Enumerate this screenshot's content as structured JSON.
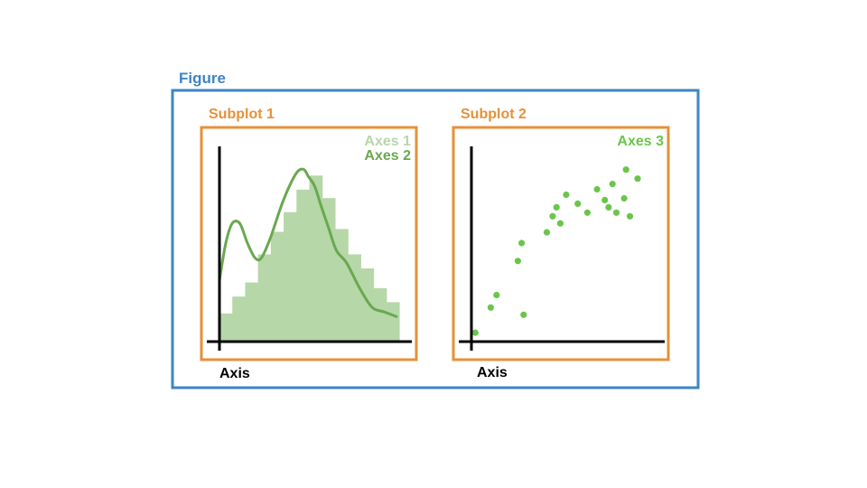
{
  "figure": {
    "label": "Figure",
    "color": "#3d85c6"
  },
  "subplots": [
    {
      "label": "Subplot 1",
      "color": "#e69138",
      "axis_label": "Axis",
      "legend": [
        {
          "text": "Axes 1",
          "color": "#b6d7a8"
        },
        {
          "text": "Axes 2",
          "color": "#6aa84f"
        }
      ]
    },
    {
      "label": "Subplot 2",
      "color": "#e69138",
      "axis_label": "Axis",
      "legend": [
        {
          "text": "Axes 3",
          "color": "#6ac64a"
        }
      ]
    }
  ],
  "chart_data": [
    {
      "type": "bar",
      "series_label": "Axes 1",
      "color": "#b6d7a8",
      "values": [
        1.0,
        1.6,
        2.1,
        3.1,
        3.9,
        4.6,
        5.4,
        5.9,
        5.1,
        4.0,
        3.1,
        2.6,
        1.9,
        1.4
      ],
      "ylim": [
        0,
        7
      ]
    },
    {
      "type": "line",
      "series_label": "Axes 2",
      "color": "#6aa84f",
      "x": [
        0,
        0.5,
        1,
        1.6,
        2.2,
        2.8,
        3.3,
        4,
        5,
        6,
        6.6,
        7,
        7.5,
        8,
        8.6,
        9.2,
        10,
        11,
        12,
        13,
        14
      ],
      "y": [
        1.5,
        3.0,
        3.8,
        3.8,
        3.0,
        2.4,
        2.4,
        3.2,
        4.7,
        5.8,
        6.0,
        5.7,
        5.3,
        4.5,
        3.6,
        2.7,
        2.2,
        1.2,
        0.4,
        0.2,
        0.0
      ],
      "xlim": [
        0,
        14
      ],
      "ylim": [
        -1,
        7
      ]
    },
    {
      "type": "scatter",
      "series_label": "Axes 3",
      "color": "#6ac64a",
      "x": [
        0.2,
        1.0,
        1.3,
        2.4,
        2.6,
        2.7,
        3.9,
        4.2,
        4.4,
        4.6,
        4.9,
        5.5,
        6.0,
        6.5,
        6.9,
        7.1,
        7.3,
        7.5,
        7.9,
        8.0,
        8.2,
        8.6
      ],
      "y": [
        0.5,
        1.9,
        2.6,
        4.5,
        5.5,
        1.5,
        6.1,
        7.0,
        7.5,
        6.6,
        8.2,
        7.7,
        7.2,
        8.5,
        7.9,
        7.5,
        8.8,
        7.2,
        8.0,
        9.6,
        7.0,
        9.1
      ],
      "xlim": [
        0,
        10
      ],
      "ylim": [
        0,
        11
      ]
    }
  ]
}
